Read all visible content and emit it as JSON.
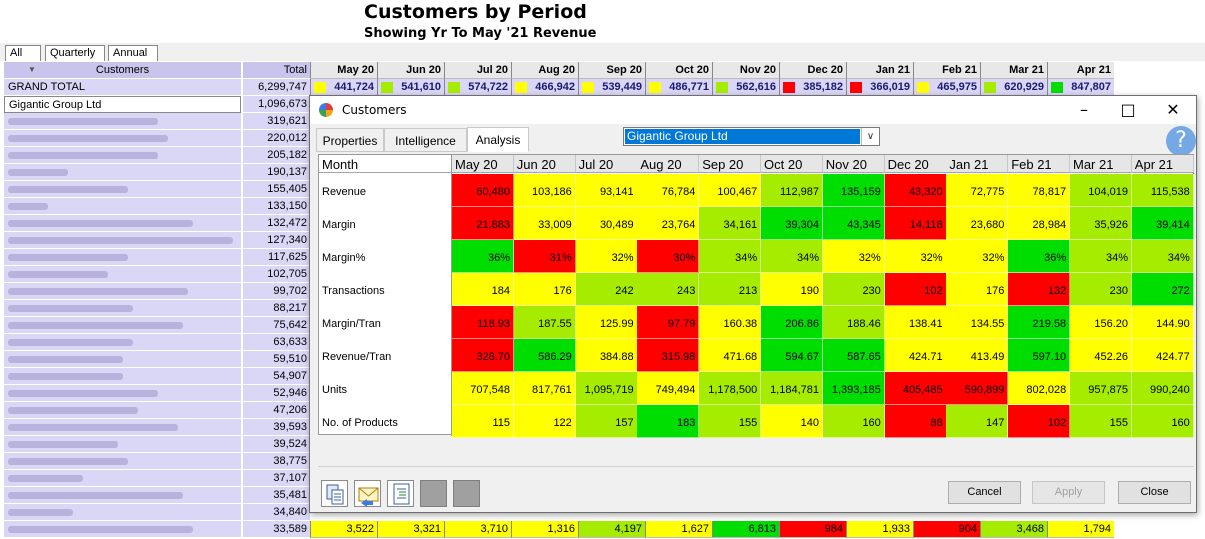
{
  "report": {
    "title": "Customers by Period",
    "subtitle": "Showing Yr To May '21 Revenue",
    "view_tabs": [
      "All",
      "Quarterly",
      "Annual"
    ]
  },
  "grid": {
    "col_customers": "Customers",
    "col_total": "Total",
    "months": [
      "May 20",
      "Jun 20",
      "Jul 20",
      "Aug 20",
      "Sep 20",
      "Oct 20",
      "Nov 20",
      "Dec 20",
      "Jan 21",
      "Feb 21",
      "Mar 21",
      "Apr 21"
    ],
    "grand_total": {
      "name": "GRAND TOTAL",
      "total": "6,299,747",
      "values": [
        "441,724",
        "541,610",
        "574,722",
        "466,942",
        "539,449",
        "486,771",
        "562,616",
        "385,182",
        "366,019",
        "465,975",
        "620,929",
        "847,807"
      ],
      "colors": [
        "#ffff00",
        "#a6ec00",
        "#a6ec00",
        "#ffff00",
        "#ffff00",
        "#ffff00",
        "#a6ec00",
        "#ff0000",
        "#ff0000",
        "#ffff00",
        "#a6ec00",
        "#00dd00"
      ]
    },
    "rows": [
      {
        "name": "Gigantic Group Ltd",
        "total": "1,096,673"
      },
      {
        "name": "",
        "total": "319,621"
      },
      {
        "name": "",
        "total": "220,012"
      },
      {
        "name": "",
        "total": "205,182"
      },
      {
        "name": "",
        "total": "190,137"
      },
      {
        "name": "",
        "total": "155,405"
      },
      {
        "name": "",
        "total": "133,150"
      },
      {
        "name": "",
        "total": "132,472"
      },
      {
        "name": "",
        "total": "127,340"
      },
      {
        "name": "",
        "total": "117,625"
      },
      {
        "name": "",
        "total": "102,705"
      },
      {
        "name": "",
        "total": "99,702"
      },
      {
        "name": "",
        "total": "88,217"
      },
      {
        "name": "",
        "total": "75,642"
      },
      {
        "name": "",
        "total": "63,633"
      },
      {
        "name": "",
        "total": "59,510"
      },
      {
        "name": "",
        "total": "54,907"
      },
      {
        "name": "",
        "total": "52,946"
      },
      {
        "name": "",
        "total": "47,206"
      },
      {
        "name": "",
        "total": "39,593"
      },
      {
        "name": "",
        "total": "39,524"
      },
      {
        "name": "",
        "total": "38,775"
      },
      {
        "name": "",
        "total": "37,107"
      },
      {
        "name": "",
        "total": "35,481"
      },
      {
        "name": "",
        "total": "34,840"
      },
      {
        "name": "",
        "total": "33,589"
      }
    ],
    "last_row_values": [
      "3,522",
      "3,321",
      "3,710",
      "1,316",
      "4,197",
      "1,627",
      "6,813",
      "984",
      "1,933",
      "904",
      "3,468",
      "1,794"
    ],
    "last_row_colors": [
      "#ffff00",
      "#ffff00",
      "#ffff00",
      "#ffff00",
      "#a6ec00",
      "#ffff00",
      "#00dd00",
      "#ff0000",
      "#ffff00",
      "#ff0000",
      "#a6ec00",
      "#ffff00"
    ]
  },
  "dialog": {
    "title": "Customers",
    "tabs": [
      "Properties",
      "Intelligence",
      "Analysis"
    ],
    "active_tab": "Analysis",
    "customer_selected": "Gigantic Group Ltd",
    "help_glyph": "?",
    "month_header": "Month",
    "months": [
      "May 20",
      "Jun 20",
      "Jul 20",
      "Aug 20",
      "Sep 20",
      "Oct 20",
      "Nov 20",
      "Dec 20",
      "Jan 21",
      "Feb 21",
      "Mar 21",
      "Apr 21"
    ],
    "colors": {
      "red": "#ff0000",
      "yellow": "#ffff00",
      "lime": "#a6ec00",
      "green": "#00dd00"
    },
    "metrics": [
      {
        "label": "Revenue",
        "values": [
          "60,480",
          "103,186",
          "93,141",
          "76,784",
          "100,467",
          "112,987",
          "135,159",
          "43,320",
          "72,775",
          "78,817",
          "104,019",
          "115,538"
        ],
        "levels": [
          "red",
          "yellow",
          "yellow",
          "yellow",
          "yellow",
          "lime",
          "green",
          "red",
          "yellow",
          "yellow",
          "lime",
          "lime"
        ]
      },
      {
        "label": "Margin",
        "values": [
          "21,883",
          "33,009",
          "30,489",
          "23,764",
          "34,161",
          "39,304",
          "43,345",
          "14,118",
          "23,680",
          "28,984",
          "35,926",
          "39,414"
        ],
        "levels": [
          "red",
          "yellow",
          "yellow",
          "yellow",
          "lime",
          "green",
          "green",
          "red",
          "yellow",
          "yellow",
          "lime",
          "green"
        ]
      },
      {
        "label": "Margin%",
        "values": [
          "36%",
          "31%",
          "32%",
          "30%",
          "34%",
          "34%",
          "32%",
          "32%",
          "32%",
          "36%",
          "34%",
          "34%"
        ],
        "levels": [
          "green",
          "red",
          "yellow",
          "red",
          "lime",
          "lime",
          "yellow",
          "yellow",
          "yellow",
          "green",
          "lime",
          "lime"
        ]
      },
      {
        "label": "Transactions",
        "values": [
          "184",
          "176",
          "242",
          "243",
          "213",
          "190",
          "230",
          "102",
          "176",
          "132",
          "230",
          "272"
        ],
        "levels": [
          "yellow",
          "yellow",
          "lime",
          "lime",
          "lime",
          "yellow",
          "lime",
          "red",
          "yellow",
          "red",
          "lime",
          "green"
        ]
      },
      {
        "label": "Margin/Tran",
        "values": [
          "118.93",
          "187.55",
          "125.99",
          "97.79",
          "160.38",
          "206.86",
          "188.46",
          "138.41",
          "134.55",
          "219.58",
          "156.20",
          "144.90"
        ],
        "levels": [
          "red",
          "lime",
          "yellow",
          "red",
          "yellow",
          "green",
          "lime",
          "yellow",
          "yellow",
          "green",
          "yellow",
          "yellow"
        ]
      },
      {
        "label": "Revenue/Tran",
        "values": [
          "328.70",
          "586.29",
          "384.88",
          "315.98",
          "471.68",
          "594.67",
          "587.65",
          "424.71",
          "413.49",
          "597.10",
          "452.26",
          "424.77"
        ],
        "levels": [
          "red",
          "green",
          "yellow",
          "red",
          "yellow",
          "green",
          "green",
          "yellow",
          "yellow",
          "green",
          "yellow",
          "yellow"
        ]
      },
      {
        "label": "Units",
        "values": [
          "707,548",
          "817,761",
          "1,095,719",
          "749,494",
          "1,178,500",
          "1,184,781",
          "1,393,185",
          "405,485",
          "590,899",
          "802,028",
          "957,875",
          "990,240"
        ],
        "levels": [
          "yellow",
          "yellow",
          "lime",
          "yellow",
          "lime",
          "lime",
          "green",
          "red",
          "red",
          "yellow",
          "lime",
          "lime"
        ]
      },
      {
        "label": "No. of Products",
        "values": [
          "115",
          "122",
          "157",
          "183",
          "155",
          "140",
          "160",
          "88",
          "147",
          "102",
          "155",
          "160"
        ],
        "levels": [
          "yellow",
          "yellow",
          "lime",
          "green",
          "lime",
          "yellow",
          "lime",
          "red",
          "lime",
          "red",
          "lime",
          "lime"
        ]
      }
    ],
    "buttons": {
      "cancel": "Cancel",
      "apply": "Apply",
      "close": "Close"
    },
    "toolbar_icons": [
      "copy-icon",
      "email-icon",
      "report-icon",
      "blank-icon",
      "blank-icon"
    ]
  }
}
